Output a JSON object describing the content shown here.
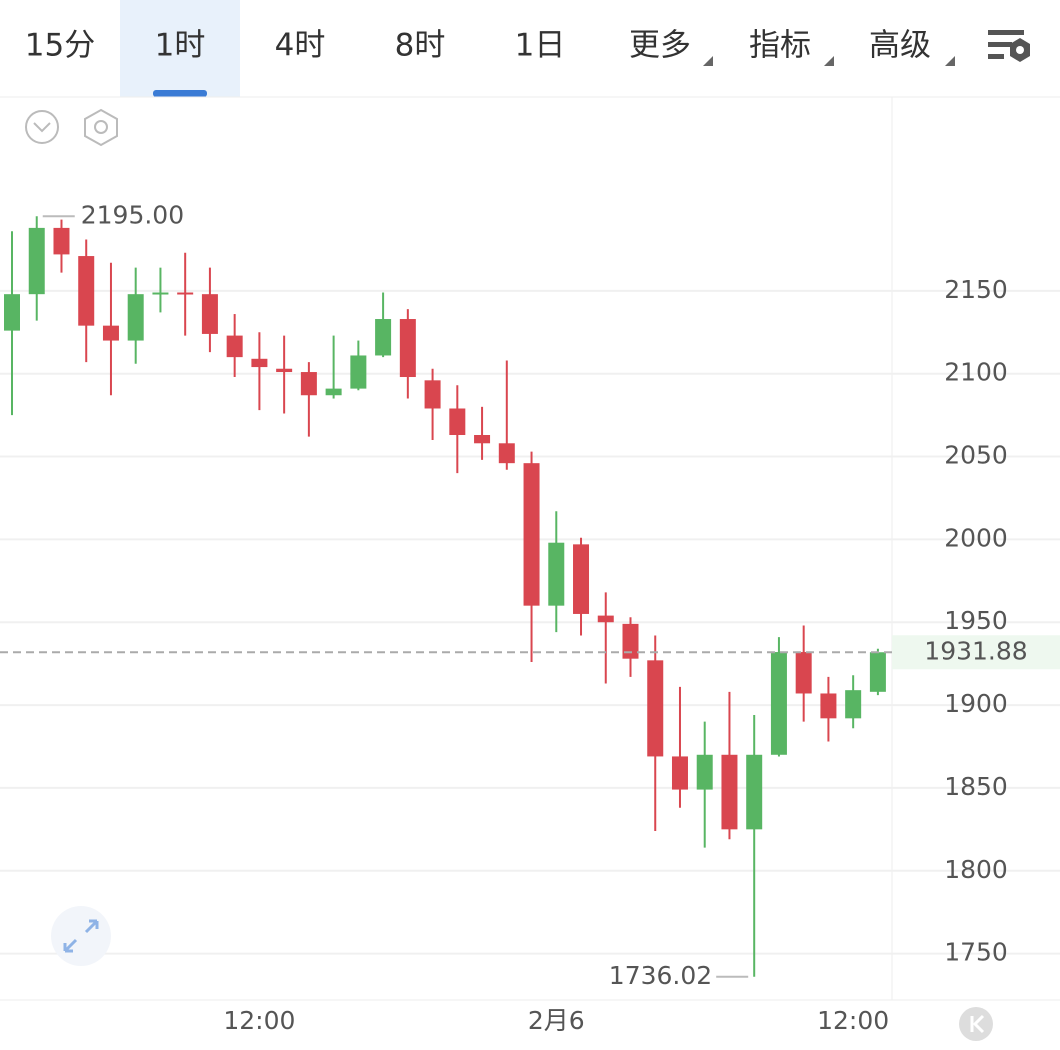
{
  "tabs": [
    "15分",
    "1时",
    "4时",
    "8时",
    "1日",
    "更多",
    "指标",
    "高级"
  ],
  "active_tab": 1,
  "chart_data": {
    "type": "candlestick",
    "categories": [
      null,
      null,
      null,
      null,
      null,
      null,
      null,
      null,
      null,
      null,
      "12:00",
      null,
      null,
      null,
      null,
      null,
      null,
      null,
      null,
      null,
      null,
      null,
      "2月6",
      null,
      null,
      null,
      null,
      null,
      null,
      null,
      null,
      null,
      null,
      null,
      "12:00",
      null
    ],
    "open": [
      2126,
      2148,
      2188,
      2171,
      2129,
      2120,
      2148,
      2149,
      2148,
      2123,
      2109,
      2103,
      2101,
      2087,
      2091,
      2111,
      2133,
      2096,
      2079,
      2063,
      2058,
      2046,
      1960,
      1997,
      1954,
      1949,
      1927,
      1869,
      1849,
      1870,
      1825,
      1870,
      1932,
      1907,
      1892,
      1908
    ],
    "high": [
      2186,
      2195,
      2193,
      2181,
      2167,
      2164,
      2164,
      2173,
      2164,
      2136,
      2125,
      2123,
      2107,
      2123,
      2120,
      2149,
      2139,
      2103,
      2093,
      2080,
      2108,
      2053,
      2017,
      2001,
      1968,
      1953,
      1942,
      1911,
      1890,
      1908,
      1894,
      1941,
      1948,
      1917,
      1918,
      1934
    ],
    "low": [
      2075,
      2132,
      2161,
      2107,
      2087,
      2106,
      2137,
      2123,
      2113,
      2098,
      2078,
      2076,
      2062,
      2085,
      2090,
      2110,
      2085,
      2060,
      2040,
      2048,
      2042,
      1926,
      1944,
      1942,
      1913,
      1917,
      1824,
      1838,
      1814,
      1819,
      1736.02,
      1869,
      1890,
      1878,
      1886,
      1906
    ],
    "close": [
      2148,
      2188,
      2172,
      2129,
      2120,
      2148,
      2149,
      2148,
      2124,
      2110,
      2104,
      2101,
      2087,
      2091,
      2111,
      2133,
      2098,
      2079,
      2063,
      2058,
      2046,
      1960,
      1998,
      1955,
      1950,
      1928,
      1869,
      1849,
      1870,
      1825,
      1870,
      1932,
      1907,
      1892,
      1909,
      1931.88
    ],
    "up_color": "#58b563",
    "down_color": "#d9464f",
    "ylim": [
      1722,
      2267
    ],
    "yticks": [
      1750,
      1800,
      1850,
      1900,
      1950,
      2000,
      2050,
      2100,
      2150
    ],
    "grid": true,
    "max_label": {
      "value": 2195,
      "label": "2195.00"
    },
    "min_label": 1736.02,
    "last_price": 1931.88
  }
}
